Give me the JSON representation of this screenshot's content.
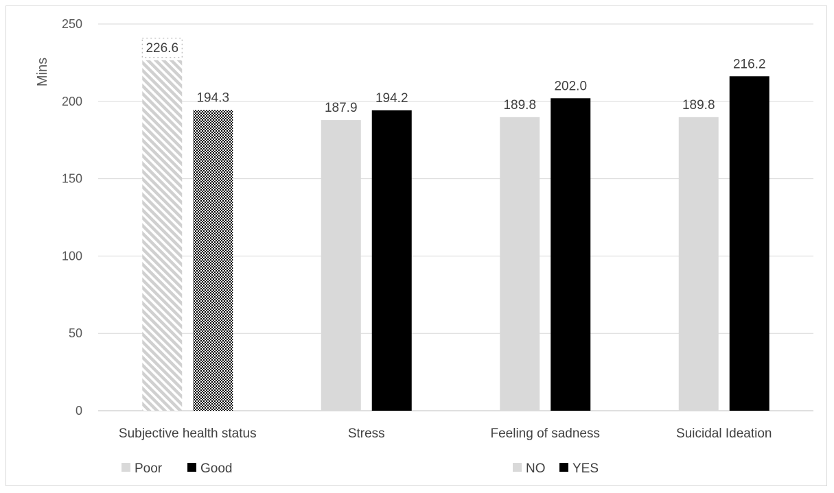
{
  "chart_data": {
    "type": "bar",
    "title": "",
    "ylabel": "Mins",
    "xlabel": "",
    "ylim": [
      0,
      250
    ],
    "yticks": [
      0,
      50,
      100,
      150,
      200,
      250
    ],
    "grid": true,
    "categories": [
      "Subjective health status",
      "Stress",
      "Feeling of sadness",
      "Suicidal Ideation"
    ],
    "groups": [
      {
        "category": "Subjective health status",
        "bars": [
          {
            "series": "Poor",
            "value": 226.6,
            "label": "226.6",
            "color": "#d9d9d9",
            "pattern": "diagonal-stripes"
          },
          {
            "series": "Good",
            "value": 194.3,
            "label": "194.3",
            "color": "#000000",
            "pattern": "checkered"
          }
        ]
      },
      {
        "category": "Stress",
        "bars": [
          {
            "series": "NO",
            "value": 187.9,
            "label": "187.9",
            "color": "#d9d9d9",
            "pattern": "solid"
          },
          {
            "series": "YES",
            "value": 194.2,
            "label": "194.2",
            "color": "#000000",
            "pattern": "solid"
          }
        ]
      },
      {
        "category": "Feeling of sadness",
        "bars": [
          {
            "series": "NO",
            "value": 189.8,
            "label": "189.8",
            "color": "#d9d9d9",
            "pattern": "solid"
          },
          {
            "series": "YES",
            "value": 202.0,
            "label": "202.0",
            "color": "#000000",
            "pattern": "solid"
          }
        ]
      },
      {
        "category": "Suicidal Ideation",
        "bars": [
          {
            "series": "NO",
            "value": 189.8,
            "label": "189.8",
            "color": "#d9d9d9",
            "pattern": "solid"
          },
          {
            "series": "YES",
            "value": 216.2,
            "label": "216.2",
            "color": "#000000",
            "pattern": "solid"
          }
        ]
      }
    ],
    "legends": [
      {
        "placement": "bottom-left",
        "entries": [
          {
            "name": "Poor",
            "color": "#d9d9d9"
          },
          {
            "name": "Good",
            "color": "#000000"
          }
        ]
      },
      {
        "placement": "bottom-center-right",
        "entries": [
          {
            "name": "NO",
            "color": "#d9d9d9"
          },
          {
            "name": "YES",
            "color": "#000000"
          }
        ]
      }
    ]
  }
}
